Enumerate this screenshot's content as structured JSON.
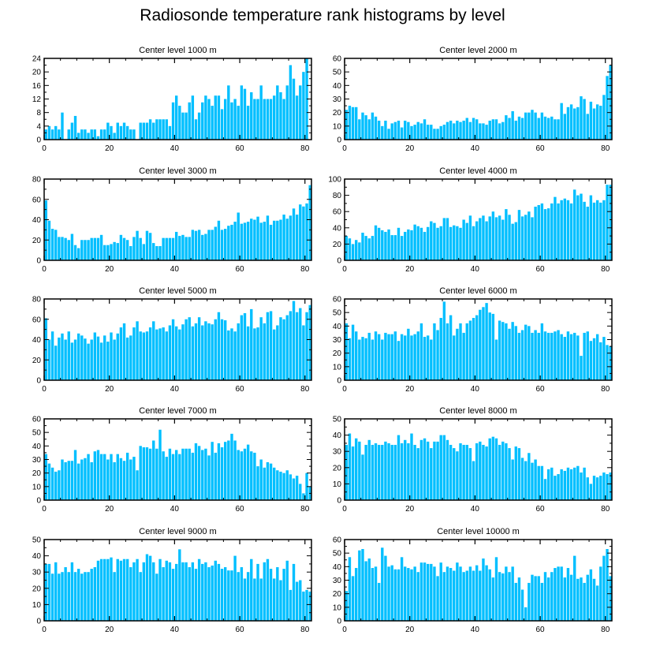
{
  "title": "Radiosonde temperature rank histograms by level",
  "colors": {
    "bar": "#00bfff",
    "axis": "#000000"
  },
  "chart_data": [
    {
      "type": "bar",
      "title": "Center level 1000 m",
      "xlim": [
        0,
        82
      ],
      "ylim": [
        0,
        24
      ],
      "xticks": [
        0,
        20,
        40,
        60,
        80
      ],
      "yticks": [
        0,
        4,
        8,
        12,
        16,
        20,
        24
      ],
      "values": [
        3,
        4,
        3,
        4,
        3,
        8,
        0,
        3,
        5,
        7,
        2,
        3,
        3,
        2,
        3,
        3,
        1,
        3,
        3,
        5,
        4,
        2,
        5,
        4,
        5,
        4,
        3,
        3,
        0,
        5,
        5,
        5,
        6,
        5,
        6,
        6,
        6,
        6,
        4,
        11,
        13,
        10,
        8,
        8,
        11,
        13,
        6,
        8,
        11,
        13,
        12,
        10,
        13,
        13,
        9,
        12,
        16,
        11,
        12,
        10,
        16,
        15,
        10,
        14,
        12,
        12,
        16,
        12,
        12,
        12,
        13,
        16,
        14,
        12,
        16,
        22,
        18,
        13,
        16,
        20,
        24
      ]
    },
    {
      "type": "bar",
      "title": "Center level 2000 m",
      "xlim": [
        0,
        82
      ],
      "ylim": [
        0,
        60
      ],
      "xticks": [
        0,
        20,
        40,
        60,
        80
      ],
      "yticks": [
        0,
        10,
        20,
        30,
        40,
        50,
        60
      ],
      "values": [
        22,
        25,
        24,
        24,
        15,
        20,
        18,
        15,
        20,
        17,
        14,
        10,
        14,
        8,
        12,
        13,
        14,
        9,
        14,
        13,
        10,
        11,
        13,
        12,
        15,
        11,
        11,
        8,
        8,
        10,
        11,
        13,
        14,
        12,
        14,
        13,
        14,
        16,
        13,
        16,
        15,
        12,
        12,
        11,
        14,
        15,
        15,
        12,
        13,
        18,
        16,
        21,
        14,
        17,
        16,
        20,
        20,
        22,
        20,
        16,
        20,
        17,
        16,
        17,
        15,
        15,
        27,
        19,
        24,
        26,
        23,
        24,
        32,
        30,
        19,
        28,
        23,
        26,
        25,
        33,
        47,
        55
      ]
    },
    {
      "type": "bar",
      "title": "Center level 3000 m",
      "xlim": [
        0,
        82
      ],
      "ylim": [
        0,
        80
      ],
      "xticks": [
        0,
        20,
        40,
        60,
        80
      ],
      "yticks": [
        0,
        20,
        40,
        60,
        80
      ],
      "values": [
        59,
        39,
        31,
        30,
        23,
        23,
        22,
        20,
        26,
        15,
        12,
        20,
        20,
        20,
        22,
        22,
        22,
        25,
        15,
        15,
        16,
        18,
        17,
        25,
        22,
        20,
        14,
        23,
        29,
        22,
        16,
        29,
        27,
        17,
        14,
        14,
        22,
        22,
        22,
        22,
        28,
        24,
        25,
        23,
        23,
        30,
        29,
        30,
        25,
        26,
        30,
        30,
        33,
        39,
        30,
        31,
        34,
        35,
        38,
        47,
        36,
        37,
        38,
        41,
        40,
        43,
        37,
        38,
        44,
        35,
        39,
        39,
        40,
        45,
        41,
        44,
        51,
        45,
        55,
        53,
        56,
        74
      ]
    },
    {
      "type": "bar",
      "title": "Center level 4000 m",
      "xlim": [
        0,
        82
      ],
      "ylim": [
        0,
        100
      ],
      "xticks": [
        0,
        20,
        40,
        60,
        80
      ],
      "yticks": [
        0,
        20,
        40,
        60,
        80,
        100
      ],
      "values": [
        30,
        27,
        20,
        25,
        22,
        34,
        30,
        27,
        30,
        43,
        40,
        37,
        35,
        38,
        31,
        31,
        40,
        30,
        35,
        38,
        37,
        44,
        42,
        40,
        35,
        41,
        48,
        46,
        40,
        42,
        52,
        52,
        41,
        43,
        42,
        40,
        50,
        46,
        55,
        42,
        48,
        52,
        55,
        48,
        54,
        60,
        53,
        55,
        50,
        63,
        56,
        45,
        47,
        62,
        54,
        56,
        60,
        53,
        66,
        68,
        70,
        63,
        64,
        70,
        78,
        70,
        74,
        76,
        74,
        70,
        87,
        80,
        82,
        72,
        66,
        80,
        71,
        74,
        71,
        74,
        93,
        93
      ]
    },
    {
      "type": "bar",
      "title": "Center level 5000 m",
      "xlim": [
        0,
        82
      ],
      "ylim": [
        0,
        80
      ],
      "xticks": [
        0,
        20,
        40,
        60,
        80
      ],
      "yticks": [
        0,
        20,
        40,
        60,
        80
      ],
      "values": [
        61,
        40,
        48,
        34,
        42,
        46,
        40,
        48,
        37,
        40,
        46,
        44,
        41,
        36,
        40,
        47,
        43,
        37,
        44,
        38,
        47,
        40,
        46,
        52,
        56,
        42,
        44,
        52,
        58,
        48,
        47,
        48,
        52,
        58,
        50,
        51,
        52,
        48,
        54,
        60,
        53,
        50,
        55,
        60,
        62,
        53,
        56,
        62,
        54,
        58,
        56,
        55,
        60,
        67,
        60,
        59,
        49,
        51,
        48,
        56,
        64,
        66,
        53,
        70,
        51,
        52,
        62,
        56,
        67,
        68,
        50,
        54,
        62,
        60,
        64,
        68,
        78,
        67,
        71,
        54,
        67,
        74
      ]
    },
    {
      "type": "bar",
      "title": "Center level 6000 m",
      "xlim": [
        0,
        82
      ],
      "ylim": [
        0,
        60
      ],
      "xticks": [
        0,
        20,
        40,
        60,
        80
      ],
      "yticks": [
        0,
        10,
        20,
        30,
        40,
        50,
        60
      ],
      "values": [
        42,
        31,
        41,
        36,
        30,
        32,
        31,
        35,
        30,
        36,
        34,
        30,
        35,
        34,
        34,
        36,
        29,
        34,
        33,
        38,
        33,
        34,
        36,
        42,
        32,
        33,
        30,
        42,
        37,
        46,
        58,
        42,
        48,
        33,
        38,
        42,
        35,
        42,
        44,
        46,
        48,
        52,
        54,
        57,
        50,
        49,
        30,
        44,
        43,
        42,
        38,
        43,
        40,
        35,
        37,
        41,
        40,
        35,
        37,
        35,
        42,
        36,
        35,
        35,
        36,
        37,
        34,
        32,
        36,
        34,
        35,
        33,
        18,
        35,
        36,
        29,
        31,
        34,
        28,
        32,
        26,
        25
      ]
    },
    {
      "type": "bar",
      "title": "Center level 7000 m",
      "xlim": [
        0,
        82
      ],
      "ylim": [
        0,
        60
      ],
      "xticks": [
        0,
        20,
        40,
        60,
        80
      ],
      "yticks": [
        0,
        10,
        20,
        30,
        40,
        50,
        60
      ],
      "values": [
        34,
        27,
        24,
        21,
        22,
        30,
        28,
        29,
        29,
        37,
        27,
        30,
        31,
        34,
        28,
        36,
        37,
        34,
        34,
        30,
        34,
        28,
        34,
        31,
        29,
        35,
        30,
        32,
        22,
        40,
        39,
        39,
        38,
        44,
        38,
        52,
        36,
        32,
        38,
        34,
        37,
        34,
        38,
        38,
        38,
        35,
        42,
        40,
        37,
        38,
        33,
        43,
        35,
        42,
        39,
        43,
        44,
        49,
        44,
        37,
        36,
        38,
        41,
        36,
        35,
        25,
        30,
        24,
        28,
        27,
        24,
        22,
        21,
        20,
        22,
        19,
        16,
        18,
        12,
        5,
        20,
        10
      ]
    },
    {
      "type": "bar",
      "title": "Center level 8000 m",
      "xlim": [
        0,
        82
      ],
      "ylim": [
        0,
        50
      ],
      "xticks": [
        0,
        20,
        40,
        60,
        80
      ],
      "yticks": [
        0,
        10,
        20,
        30,
        40,
        50
      ],
      "values": [
        34,
        41,
        33,
        38,
        36,
        28,
        34,
        37,
        34,
        35,
        34,
        34,
        36,
        35,
        34,
        34,
        40,
        35,
        37,
        35,
        41,
        34,
        32,
        37,
        38,
        36,
        32,
        36,
        36,
        40,
        40,
        37,
        34,
        32,
        30,
        35,
        34,
        34,
        32,
        24,
        35,
        36,
        34,
        33,
        38,
        39,
        38,
        34,
        36,
        35,
        32,
        25,
        33,
        32,
        26,
        24,
        29,
        23,
        25,
        21,
        21,
        13,
        19,
        20,
        15,
        16,
        19,
        18,
        20,
        19,
        20,
        21,
        17,
        20,
        14,
        10,
        15,
        14,
        15,
        17,
        16,
        17
      ]
    },
    {
      "type": "bar",
      "title": "Center level 9000 m",
      "xlim": [
        0,
        82
      ],
      "ylim": [
        0,
        50
      ],
      "xticks": [
        0,
        20,
        40,
        60,
        80
      ],
      "yticks": [
        0,
        10,
        20,
        30,
        40,
        50
      ],
      "values": [
        35,
        35,
        29,
        36,
        29,
        30,
        33,
        30,
        36,
        30,
        32,
        29,
        30,
        30,
        32,
        33,
        37,
        38,
        38,
        38,
        39,
        30,
        38,
        37,
        38,
        38,
        33,
        36,
        38,
        30,
        36,
        41,
        40,
        36,
        29,
        38,
        33,
        37,
        36,
        32,
        35,
        44,
        36,
        36,
        33,
        36,
        32,
        38,
        35,
        36,
        33,
        34,
        37,
        35,
        32,
        33,
        31,
        31,
        40,
        30,
        33,
        26,
        30,
        38,
        26,
        35,
        26,
        36,
        38,
        32,
        26,
        33,
        25,
        32,
        37,
        19,
        35,
        24,
        25,
        18,
        19,
        18
      ]
    },
    {
      "type": "bar",
      "title": "Center level 10000 m",
      "xlim": [
        0,
        82
      ],
      "ylim": [
        0,
        60
      ],
      "xticks": [
        0,
        20,
        40,
        60,
        80
      ],
      "yticks": [
        0,
        10,
        20,
        30,
        40,
        50,
        60
      ],
      "values": [
        22,
        47,
        33,
        39,
        52,
        53,
        44,
        46,
        39,
        40,
        28,
        54,
        48,
        40,
        41,
        38,
        38,
        47,
        40,
        39,
        38,
        40,
        36,
        43,
        43,
        42,
        42,
        40,
        33,
        43,
        36,
        40,
        39,
        37,
        43,
        40,
        36,
        37,
        40,
        37,
        41,
        37,
        46,
        41,
        38,
        32,
        47,
        36,
        35,
        40,
        36,
        40,
        28,
        32,
        23,
        10,
        28,
        34,
        33,
        33,
        28,
        36,
        32,
        36,
        39,
        40,
        40,
        32,
        39,
        34,
        48,
        31,
        32,
        28,
        34,
        38,
        31,
        26,
        40,
        48,
        53,
        33
      ]
    }
  ]
}
